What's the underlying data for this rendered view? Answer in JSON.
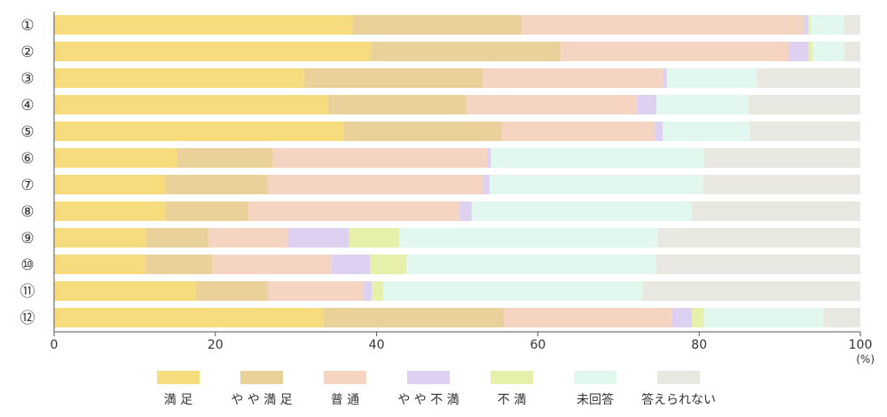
{
  "chart_data": {
    "type": "bar",
    "orientation": "horizontal",
    "stacked": true,
    "categories": [
      "①",
      "②",
      "③",
      "④",
      "⑤",
      "⑥",
      "⑦",
      "⑧",
      "⑨",
      "⑩",
      "⑪",
      "⑫"
    ],
    "series": [
      {
        "name": "満 足",
        "color": "#f7dc7e",
        "values": [
          37.0,
          39.3,
          31.0,
          33.9,
          35.9,
          15.3,
          13.8,
          13.8,
          11.4,
          11.3,
          17.6,
          33.4
        ]
      },
      {
        "name": "や や 満 足",
        "color": "#e9d199",
        "values": [
          21.0,
          23.5,
          22.2,
          17.2,
          19.6,
          11.8,
          12.7,
          10.3,
          7.7,
          8.3,
          8.9,
          22.4
        ]
      },
      {
        "name": "普 通",
        "color": "#f5d4c2",
        "values": [
          35.0,
          28.3,
          22.3,
          21.2,
          19.0,
          26.6,
          26.7,
          26.2,
          9.9,
          14.8,
          11.9,
          20.8
        ]
      },
      {
        "name": "や や 不 満",
        "color": "#ddd0f0",
        "values": [
          0.5,
          2.5,
          0.5,
          2.4,
          1.0,
          0.5,
          0.8,
          1.5,
          7.6,
          4.8,
          1.0,
          2.5
        ]
      },
      {
        "name": "不 満",
        "color": "#e7f0a8",
        "values": [
          0.3,
          0.5,
          0.0,
          0.0,
          0.0,
          0.0,
          0.0,
          0.0,
          6.2,
          4.5,
          1.4,
          1.5
        ]
      },
      {
        "name": "未回答",
        "color": "#e2f8ee",
        "values": [
          4.2,
          3.9,
          11.2,
          11.4,
          10.8,
          26.4,
          26.5,
          27.3,
          32.1,
          31.0,
          32.2,
          14.8
        ]
      },
      {
        "name": "答えられない",
        "color": "#e9e8e0",
        "values": [
          2.0,
          2.0,
          12.8,
          13.9,
          13.7,
          19.4,
          19.5,
          20.9,
          25.1,
          25.3,
          27.0,
          4.6
        ]
      }
    ],
    "xlim": [
      0,
      100
    ],
    "xticks": [
      0,
      20,
      40,
      60,
      80,
      100
    ],
    "unit": "(%)",
    "grid": false,
    "legend_position": "bottom"
  }
}
